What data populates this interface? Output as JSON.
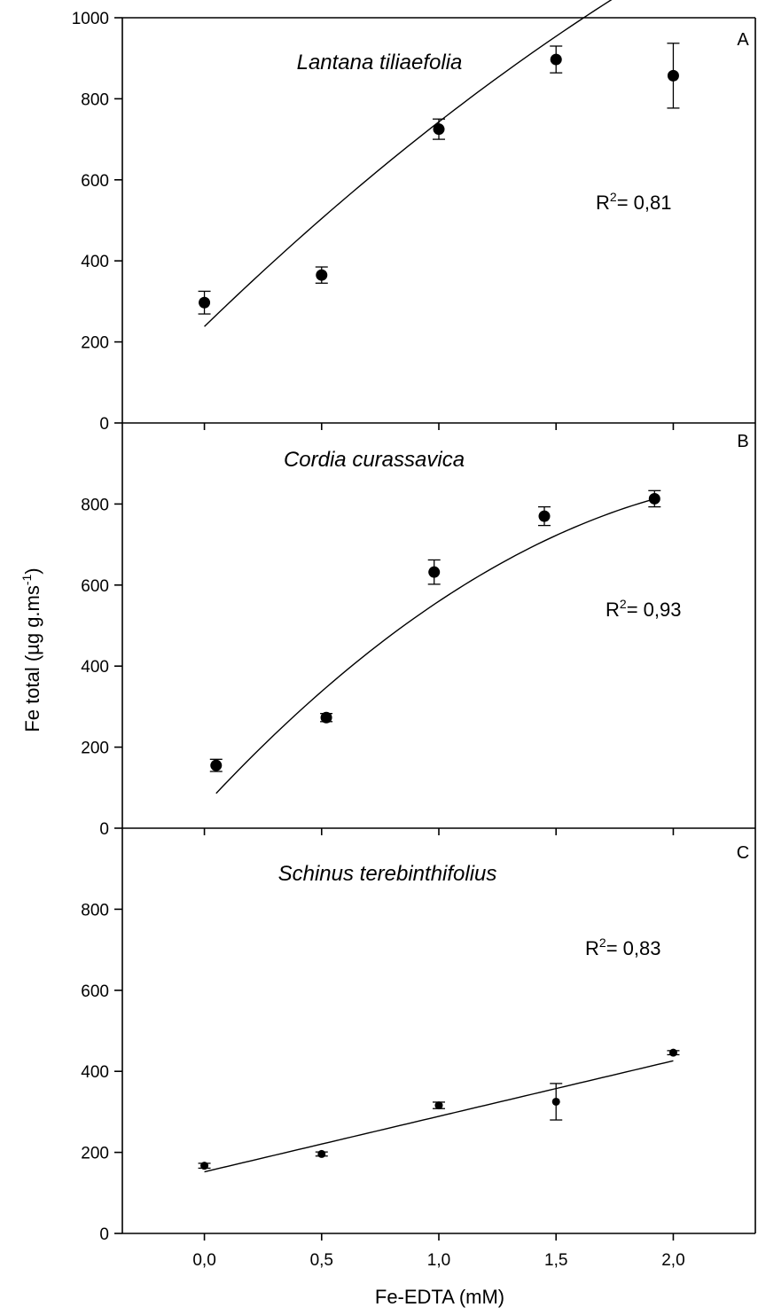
{
  "chart_data": {
    "type": "scatter",
    "xlabel": "Fe-EDTA (mM)",
    "ylabel": "Fe total (µg g.ms",
    "ylabel_superscript": "-1",
    "ylabel_suffix": ")",
    "xlim": [
      -0.35,
      2.35
    ],
    "x_ticks": [
      0,
      0.5,
      1,
      1.5,
      2
    ],
    "x_tick_labels": [
      "0,0",
      "0,5",
      "1,0",
      "1,5",
      "2,0"
    ],
    "colors": {
      "axis": "#000000",
      "marker": "#000000",
      "background": "#ffffff"
    },
    "panels": [
      {
        "letter": "A",
        "species": "Lantana tiliaefolia",
        "r2_prefix": "R",
        "r2_sup": "2",
        "r2_value": "= 0,81",
        "ylim": [
          0,
          1000
        ],
        "y_ticks": [
          0,
          200,
          400,
          600,
          800,
          1000
        ],
        "y_tick_labels": [
          "0",
          "200",
          "400",
          "600",
          "800",
          "1000"
        ],
        "points": [
          {
            "x": 0.0,
            "y": 297,
            "err": 28
          },
          {
            "x": 0.5,
            "y": 365,
            "err": 20
          },
          {
            "x": 1.0,
            "y": 725,
            "err": 25
          },
          {
            "x": 1.5,
            "y": 897,
            "err": 33
          },
          {
            "x": 2.0,
            "y": 857,
            "err": 80
          }
        ],
        "fit": {
          "kind": "quadratic",
          "coefficients": [
            238,
            560,
            -55
          ],
          "x_range": [
            0,
            2.0
          ]
        }
      },
      {
        "letter": "B",
        "species": "Cordia curassavica",
        "r2_prefix": "R",
        "r2_sup": "2",
        "r2_value": "= 0,93",
        "ylim": [
          0,
          1000
        ],
        "y_ticks": [
          0,
          200,
          400,
          600,
          800
        ],
        "y_tick_labels": [
          "0",
          "200",
          "400",
          "600",
          "800"
        ],
        "points": [
          {
            "x": 0.05,
            "y": 155,
            "err": 15
          },
          {
            "x": 0.52,
            "y": 273,
            "err": 10
          },
          {
            "x": 0.98,
            "y": 632,
            "err": 30
          },
          {
            "x": 1.45,
            "y": 770,
            "err": 23
          },
          {
            "x": 1.92,
            "y": 813,
            "err": 20
          }
        ],
        "fit": {
          "kind": "quadratic",
          "coefficients": [
            55,
            625,
            -120
          ],
          "x_range": [
            0.05,
            1.92
          ]
        }
      },
      {
        "letter": "C",
        "species": "Schinus terebinthifolius",
        "r2_prefix": "R",
        "r2_sup": "2",
        "r2_value": "= 0,83",
        "ylim": [
          0,
          1000
        ],
        "y_ticks": [
          0,
          200,
          400,
          600,
          800
        ],
        "y_tick_labels": [
          "0",
          "200",
          "400",
          "600",
          "800"
        ],
        "points": [
          {
            "x": 0.0,
            "y": 167,
            "err": 6
          },
          {
            "x": 0.5,
            "y": 196,
            "err": 5
          },
          {
            "x": 1.0,
            "y": 316,
            "err": 8
          },
          {
            "x": 1.5,
            "y": 325,
            "err": 45
          },
          {
            "x": 2.0,
            "y": 446,
            "err": 5
          }
        ],
        "fit": {
          "kind": "linear",
          "coefficients": [
            152,
            137
          ],
          "x_range": [
            0,
            2.0
          ]
        }
      }
    ]
  }
}
